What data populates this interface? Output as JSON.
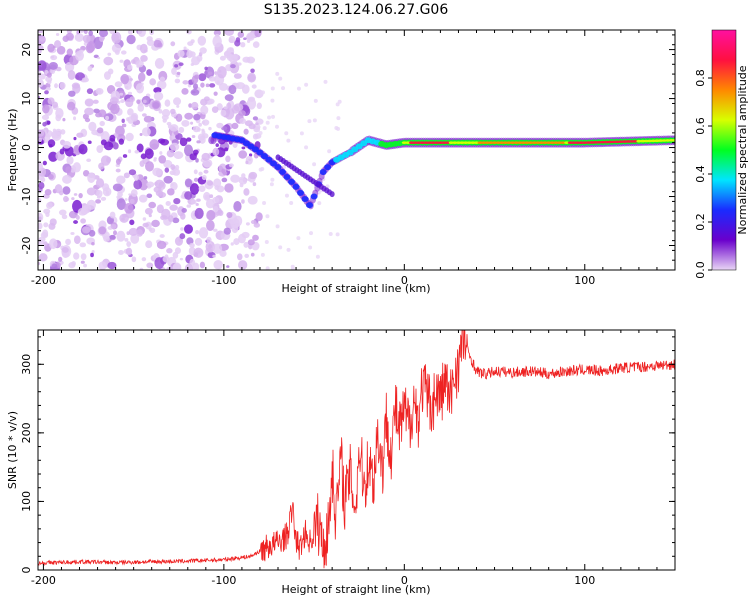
{
  "title": "S135.2023.124.06.27.G06",
  "chart_data": [
    {
      "type": "heatmap",
      "xlabel": "Height of straight line (km)",
      "ylabel": "Frequency (Hz)",
      "xlim": [
        -203,
        150
      ],
      "ylim": [
        -25,
        24
      ],
      "xticks": [
        -200,
        -100,
        0,
        100
      ],
      "yticks": [
        -20,
        -10,
        0,
        10,
        20
      ],
      "colorbar": {
        "label": "Normalized spectral amplitude",
        "range": [
          0,
          1
        ],
        "ticks": [
          0.0,
          0.2,
          0.4,
          0.6,
          0.8
        ],
        "tick_labels": [
          "0.0",
          "0.2",
          "0.4",
          "0.6",
          "0.8"
        ],
        "colormap": [
          "#e9d6f5",
          "#6a00cc",
          "#1a2bff",
          "#00e5ff",
          "#00ff20",
          "#d8ff00",
          "#ff8800",
          "#ff1040",
          "#ff10a0"
        ]
      },
      "features": {
        "noise_region_x": [
          -203,
          -80
        ],
        "trace": [
          {
            "x": -105,
            "f": 2.5
          },
          {
            "x": -90,
            "f": 1.5
          },
          {
            "x": -80,
            "f": -1
          },
          {
            "x": -70,
            "f": -4
          },
          {
            "x": -60,
            "f": -8
          },
          {
            "x": -52,
            "f": -12
          },
          {
            "x": -45,
            "f": -5
          },
          {
            "x": -40,
            "f": -3
          },
          {
            "x": -30,
            "f": -1
          },
          {
            "x": -20,
            "f": 1.5
          },
          {
            "x": -10,
            "f": 0.5
          },
          {
            "x": 0,
            "f": 1
          },
          {
            "x": 50,
            "f": 1
          },
          {
            "x": 100,
            "f": 1
          },
          {
            "x": 150,
            "f": 1.5
          }
        ]
      }
    },
    {
      "type": "line",
      "xlabel": "Height of straight line (km)",
      "ylabel": "SNR (10 * v/v)",
      "xlim": [
        -203,
        150
      ],
      "ylim": [
        0,
        350
      ],
      "xticks": [
        -200,
        -100,
        0,
        100
      ],
      "yticks": [
        0,
        100,
        200,
        300
      ],
      "color": "#ee2222",
      "series": [
        {
          "x": [
            -203,
            -180,
            -160,
            -140,
            -120,
            -100,
            -85,
            -75,
            -70,
            -65,
            -62,
            -60,
            -58,
            -55,
            -52,
            -48,
            -45,
            -42,
            -40,
            -38,
            -35,
            -33,
            -30,
            -27,
            -25,
            -22,
            -20,
            -17,
            -15,
            -12,
            -10,
            -7,
            -5,
            -3,
            0,
            3,
            5,
            8,
            10,
            13,
            15,
            18,
            20,
            23,
            25,
            28,
            30,
            33,
            35,
            40,
            45,
            50,
            60,
            70,
            80,
            90,
            100,
            110,
            120,
            130,
            140,
            150
          ],
          "y": [
            10,
            12,
            11,
            12,
            13,
            15,
            20,
            35,
            40,
            50,
            90,
            45,
            30,
            55,
            40,
            70,
            35,
            60,
            150,
            80,
            160,
            100,
            140,
            90,
            180,
            120,
            160,
            130,
            200,
            150,
            220,
            170,
            240,
            200,
            230,
            210,
            250,
            220,
            270,
            250,
            240,
            260,
            250,
            280,
            240,
            290,
            300,
            340,
            320,
            290,
            285,
            290,
            288,
            290,
            286,
            290,
            292,
            290,
            295,
            296,
            298,
            300
          ]
        }
      ]
    }
  ]
}
